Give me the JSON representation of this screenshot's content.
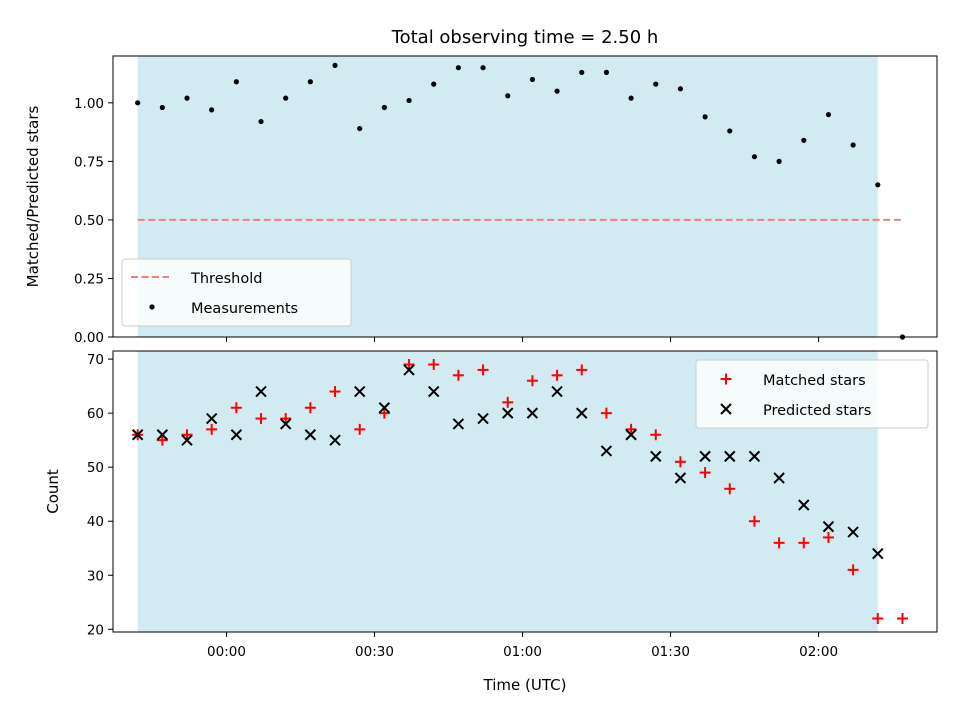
{
  "title": "Total observing time = 2.50 h",
  "colors": {
    "span": "#add8e6",
    "threshold": "#f08080",
    "measurements": "#000000",
    "matched": "#ff0000",
    "predicted": "#000000"
  },
  "chart_data": [
    {
      "type": "scatter",
      "panel": "top",
      "ylabel": "Matched/Predicted stars",
      "ylim": [
        0,
        1.2
      ],
      "yticks": [
        "0.00",
        "0.25",
        "0.50",
        "0.75",
        "1.00"
      ],
      "ytick_values": [
        0,
        0.25,
        0.5,
        0.75,
        1.0
      ],
      "xlim": [
        "-00:23",
        "02:24"
      ],
      "shaded_span": [
        "-00:18",
        "02:12"
      ],
      "legend": {
        "placement": "lower-left",
        "entries": [
          "Threshold",
          "Measurements"
        ]
      },
      "threshold": {
        "name": "Threshold",
        "y": 0.5,
        "x": [
          "-00:18",
          "02:17"
        ]
      },
      "series": [
        {
          "name": "Measurements",
          "x": [
            "-00:18",
            "-00:13",
            "-00:08",
            "-00:03",
            "00:02",
            "00:07",
            "00:12",
            "00:17",
            "00:22",
            "00:27",
            "00:32",
            "00:37",
            "00:42",
            "00:47",
            "00:52",
            "00:57",
            "01:02",
            "01:07",
            "01:12",
            "01:17",
            "01:22",
            "01:27",
            "01:32",
            "01:37",
            "01:42",
            "01:47",
            "01:52",
            "01:57",
            "02:02",
            "02:07",
            "02:12",
            "02:17"
          ],
          "y": [
            1.0,
            0.98,
            1.02,
            0.97,
            1.09,
            0.92,
            1.02,
            1.09,
            1.16,
            0.89,
            0.98,
            1.01,
            1.08,
            1.15,
            1.15,
            1.03,
            1.1,
            1.05,
            1.13,
            1.13,
            1.02,
            1.08,
            1.06,
            0.94,
            0.88,
            0.77,
            0.75,
            0.84,
            0.95,
            0.82,
            0.65,
            0.0
          ]
        }
      ]
    },
    {
      "type": "scatter",
      "panel": "bottom",
      "xlabel": "Time (UTC)",
      "ylabel": "Count",
      "ylim": [
        19.5,
        71.5
      ],
      "yticks": [
        "20",
        "30",
        "40",
        "50",
        "60",
        "70"
      ],
      "ytick_values": [
        20,
        30,
        40,
        50,
        60,
        70
      ],
      "xticks": [
        "00:00",
        "00:30",
        "01:00",
        "01:30",
        "02:00"
      ],
      "xlim": [
        "-00:23",
        "02:24"
      ],
      "shaded_span": [
        "-00:18",
        "02:12"
      ],
      "legend": {
        "placement": "top-right",
        "entries": [
          "Matched stars",
          "Predicted stars"
        ]
      },
      "series": [
        {
          "name": "Matched stars",
          "marker": "+",
          "x": [
            "-00:18",
            "-00:13",
            "-00:08",
            "-00:03",
            "00:02",
            "00:07",
            "00:12",
            "00:17",
            "00:22",
            "00:27",
            "00:32",
            "00:37",
            "00:42",
            "00:47",
            "00:52",
            "00:57",
            "01:02",
            "01:07",
            "01:12",
            "01:17",
            "01:22",
            "01:27",
            "01:32",
            "01:37",
            "01:42",
            "01:47",
            "01:52",
            "01:57",
            "02:02",
            "02:07",
            "02:12",
            "02:17"
          ],
          "y": [
            56,
            55,
            56,
            57,
            61,
            59,
            59,
            61,
            64,
            57,
            60,
            69,
            69,
            67,
            68,
            62,
            66,
            67,
            68,
            60,
            57,
            56,
            51,
            49,
            46,
            40,
            36,
            36,
            37,
            31,
            22,
            22
          ]
        },
        {
          "name": "Predicted stars",
          "marker": "x",
          "x": [
            "-00:18",
            "-00:13",
            "-00:08",
            "-00:03",
            "00:02",
            "00:07",
            "00:12",
            "00:17",
            "00:22",
            "00:27",
            "00:32",
            "00:37",
            "00:42",
            "00:47",
            "00:52",
            "00:57",
            "01:02",
            "01:07",
            "01:12",
            "01:17",
            "01:22",
            "01:27",
            "01:32",
            "01:37",
            "01:42",
            "01:47",
            "01:52",
            "01:57",
            "02:02",
            "02:07",
            "02:12"
          ],
          "y": [
            56,
            56,
            55,
            59,
            56,
            64,
            58,
            56,
            55,
            64,
            61,
            68,
            64,
            58,
            59,
            60,
            60,
            64,
            60,
            53,
            56,
            52,
            48,
            52,
            52,
            52,
            48,
            43,
            39,
            38,
            34
          ]
        }
      ]
    }
  ]
}
